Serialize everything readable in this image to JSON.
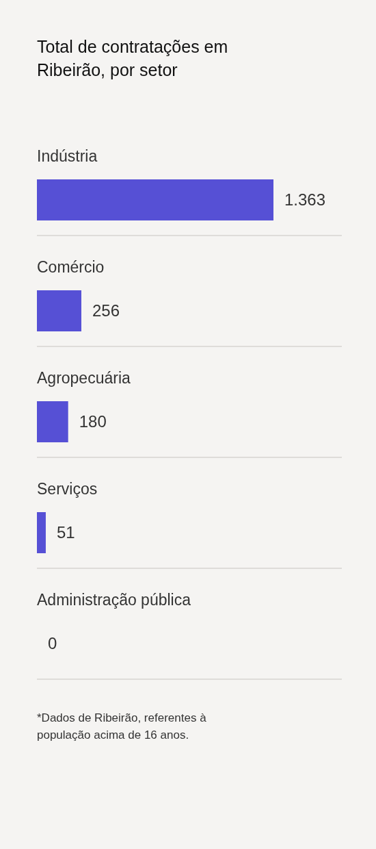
{
  "chart_data": {
    "type": "bar",
    "orientation": "horizontal",
    "title": "Total de contratações em Ribeirão, por setor",
    "categories": [
      "Indústria",
      "Comércio",
      "Agropecuária",
      "Serviços",
      "Administração pública"
    ],
    "values": [
      1363,
      256,
      180,
      51,
      0
    ],
    "value_labels": [
      "1.363",
      "256",
      "180",
      "51",
      "0"
    ],
    "color": "#5650d5",
    "annotations": [
      "*Dados de Ribeirão, referentes à população acima de 16 anos."
    ]
  }
}
